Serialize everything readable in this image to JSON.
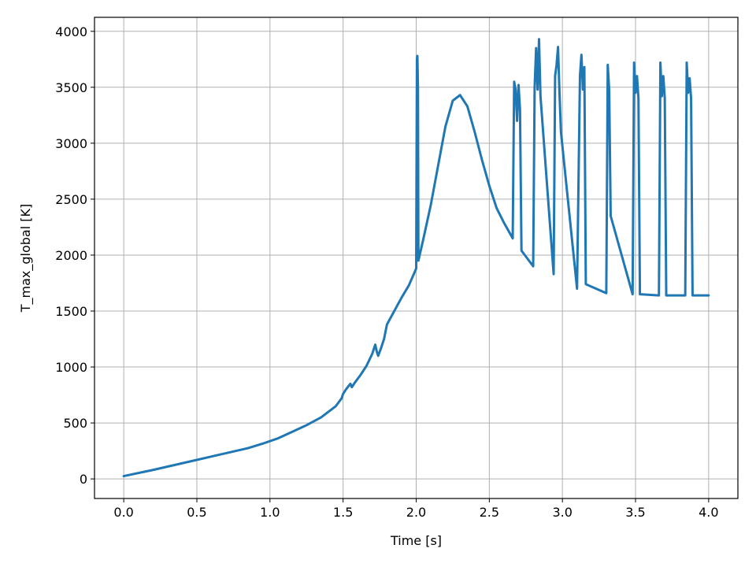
{
  "chart_data": {
    "type": "line",
    "title": "",
    "xlabel": "Time [s]",
    "ylabel": "T_max_global [K]",
    "xlim": [
      -0.2,
      4.2
    ],
    "ylim": [
      -175,
      4125
    ],
    "grid": true,
    "x_ticks": [
      0.0,
      0.5,
      1.0,
      1.5,
      2.0,
      2.5,
      3.0,
      3.5,
      4.0
    ],
    "x_tick_labels": [
      "0.0",
      "0.5",
      "1.0",
      "1.5",
      "2.0",
      "2.5",
      "3.0",
      "3.5",
      "4.0"
    ],
    "y_ticks": [
      0,
      500,
      1000,
      1500,
      2000,
      2500,
      3000,
      3500,
      4000
    ],
    "y_tick_labels": [
      "0",
      "500",
      "1000",
      "1500",
      "2000",
      "2500",
      "3000",
      "3500",
      "4000"
    ],
    "series": [
      {
        "color": "#1f77b4",
        "x": [
          0.0,
          0.2,
          0.4,
          0.6,
          0.75,
          0.85,
          0.95,
          1.05,
          1.15,
          1.25,
          1.35,
          1.45,
          1.49,
          1.5,
          1.52,
          1.55,
          1.56,
          1.58,
          1.62,
          1.66,
          1.7,
          1.72,
          1.73,
          1.74,
          1.76,
          1.78,
          1.8,
          1.85,
          1.9,
          1.95,
          2.0,
          2.005,
          2.008,
          2.012,
          2.015,
          2.05,
          2.1,
          2.15,
          2.2,
          2.25,
          2.3,
          2.35,
          2.4,
          2.45,
          2.5,
          2.55,
          2.6,
          2.66,
          2.67,
          2.68,
          2.69,
          2.7,
          2.71,
          2.72,
          2.8,
          2.81,
          2.82,
          2.83,
          2.84,
          2.85,
          2.94,
          2.95,
          2.96,
          2.97,
          2.98,
          2.99,
          3.1,
          3.12,
          3.13,
          3.14,
          3.15,
          3.16,
          3.3,
          3.31,
          3.32,
          3.33,
          3.48,
          3.49,
          3.5,
          3.51,
          3.52,
          3.53,
          3.66,
          3.67,
          3.68,
          3.69,
          3.7,
          3.71,
          3.84,
          3.85,
          3.86,
          3.87,
          3.88,
          3.89,
          4.0
        ],
        "y": [
          25,
          80,
          140,
          200,
          245,
          275,
          315,
          360,
          420,
          480,
          550,
          650,
          720,
          760,
          800,
          850,
          820,
          860,
          930,
          1010,
          1120,
          1200,
          1140,
          1100,
          1170,
          1250,
          1380,
          1500,
          1620,
          1730,
          1880,
          3750,
          3780,
          3500,
          1950,
          2150,
          2450,
          2800,
          3150,
          3380,
          3430,
          3330,
          3100,
          2850,
          2620,
          2420,
          2290,
          2150,
          3550,
          3480,
          3200,
          3520,
          3300,
          2040,
          1900,
          3500,
          3850,
          3480,
          3930,
          3420,
          1830,
          3600,
          3700,
          3860,
          3450,
          3100,
          1700,
          3600,
          3790,
          3480,
          3680,
          1740,
          1660,
          3700,
          3470,
          2350,
          1650,
          3720,
          3450,
          3600,
          3400,
          1650,
          1640,
          3720,
          3420,
          3600,
          3400,
          1640,
          1640,
          3720,
          3450,
          3580,
          3400,
          1640,
          1640
        ]
      }
    ]
  }
}
